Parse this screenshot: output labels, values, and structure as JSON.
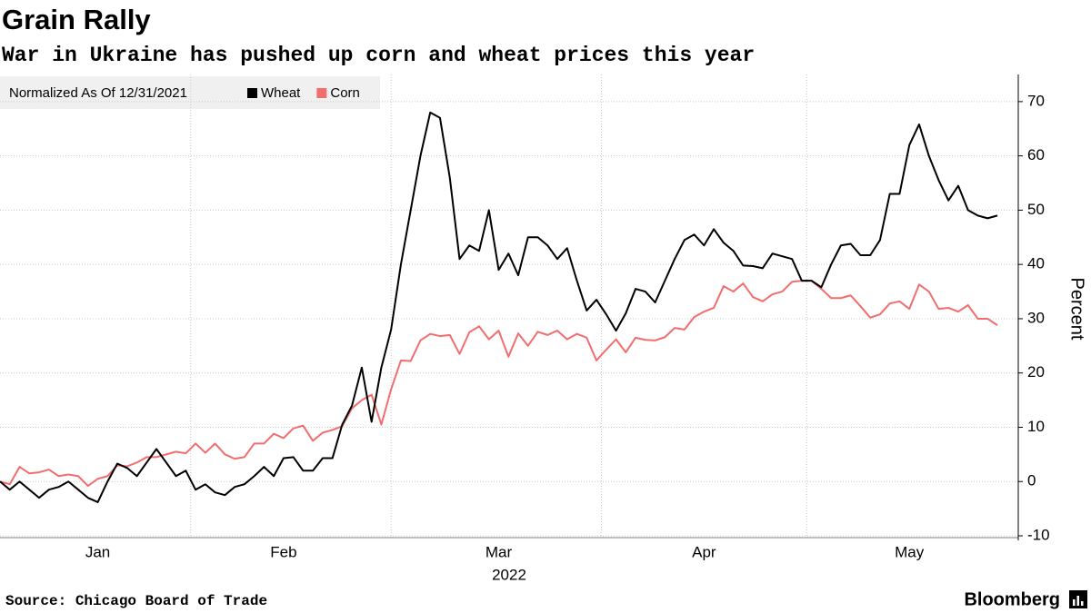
{
  "chart_data": {
    "type": "line",
    "title": "Grain Rally",
    "subtitle": "War in Ukraine has pushed up corn and wheat prices this year",
    "legend_title": "Normalized As Of 12/31/2021",
    "x_sublabel": "2022",
    "y_label": "Percent",
    "source": "Source: Chicago Board of Trade",
    "brand": "Bloomberg",
    "categories": [
      null,
      null,
      null,
      null,
      null,
      null,
      null,
      null,
      null,
      null,
      "Jan",
      null,
      null,
      null,
      null,
      null,
      null,
      null,
      null,
      null,
      null,
      null,
      null,
      null,
      null,
      null,
      null,
      null,
      null,
      "Feb",
      null,
      null,
      null,
      null,
      null,
      null,
      null,
      null,
      null,
      null,
      null,
      null,
      null,
      null,
      null,
      null,
      null,
      null,
      null,
      null,
      null,
      "Mar",
      null,
      null,
      null,
      null,
      null,
      null,
      null,
      null,
      null,
      null,
      null,
      null,
      null,
      null,
      null,
      null,
      null,
      null,
      null,
      null,
      "Apr",
      null,
      null,
      null,
      null,
      null,
      null,
      null,
      null,
      null,
      null,
      null,
      null,
      null,
      null,
      null,
      null,
      null,
      null,
      null,
      null,
      "May",
      null,
      null,
      null,
      null,
      null,
      null,
      null,
      null,
      null
    ],
    "series": [
      {
        "name": "Wheat",
        "color": "#000000",
        "values": [
          0,
          -1.5,
          0,
          -1.5,
          -3,
          -1.5,
          -1,
          0,
          -1.5,
          -3,
          -3.8,
          0,
          3.3,
          2.5,
          1,
          3.5,
          6,
          3.5,
          1,
          2,
          -1.5,
          -0.5,
          -2,
          -2.5,
          -1,
          -0.5,
          1,
          2.7,
          1,
          4.3,
          4.5,
          2,
          2,
          4.3,
          4.3,
          10.5,
          14,
          21,
          11,
          21,
          28,
          40,
          50,
          60,
          68,
          67,
          56,
          41,
          43.5,
          42.5,
          50,
          39,
          42,
          38,
          45,
          45,
          43.5,
          41,
          43,
          37,
          31.5,
          33.5,
          30.8,
          27.8,
          31,
          35.5,
          35,
          33,
          37,
          41,
          44.5,
          45.5,
          43.5,
          46.5,
          44,
          42.5,
          39.8,
          39.7,
          39.3,
          42,
          41.5,
          41,
          37,
          37,
          35.8,
          40,
          43.5,
          43.8,
          41.7,
          41.7,
          44.5,
          53,
          53,
          62,
          65.8,
          60,
          55.5,
          51.8,
          54.5,
          50,
          49,
          48.5,
          49
        ]
      },
      {
        "name": "Corn",
        "color": "#f26d6d",
        "values": [
          0,
          -0.5,
          2.7,
          1.5,
          1.7,
          2.2,
          1,
          1.3,
          1,
          -0.8,
          0.5,
          1,
          3,
          2.8,
          3.5,
          4.5,
          4.5,
          5,
          5.5,
          5.2,
          7,
          5.3,
          7,
          5,
          4.2,
          4.5,
          7,
          7,
          8.8,
          8,
          9.8,
          10.3,
          7.5,
          9,
          9.5,
          10.2,
          13.5,
          15,
          16,
          10.5,
          17,
          22.3,
          22.2,
          26,
          27.2,
          26.8,
          27,
          23.5,
          27.5,
          28.6,
          26.2,
          27.8,
          23,
          27.3,
          25,
          27.6,
          27,
          27.8,
          26.2,
          27.2,
          26.5,
          22.3,
          24.3,
          26.2,
          23.8,
          26.5,
          26.1,
          26,
          26.6,
          28.3,
          28,
          30.3,
          31.3,
          32,
          36,
          35,
          36.5,
          34,
          33.2,
          34.5,
          35,
          36.8,
          37,
          37,
          35.5,
          33.8,
          33.8,
          34.3,
          32.3,
          30.2,
          30.8,
          32.8,
          33.2,
          31.8,
          36.3,
          35,
          31.8,
          32,
          31.3,
          32.5,
          30,
          30,
          28.8
        ]
      }
    ],
    "ylim": [
      -10,
      75
    ],
    "yticks": [
      -10,
      0,
      10,
      20,
      30,
      40,
      50,
      60,
      70
    ],
    "grid": true
  }
}
